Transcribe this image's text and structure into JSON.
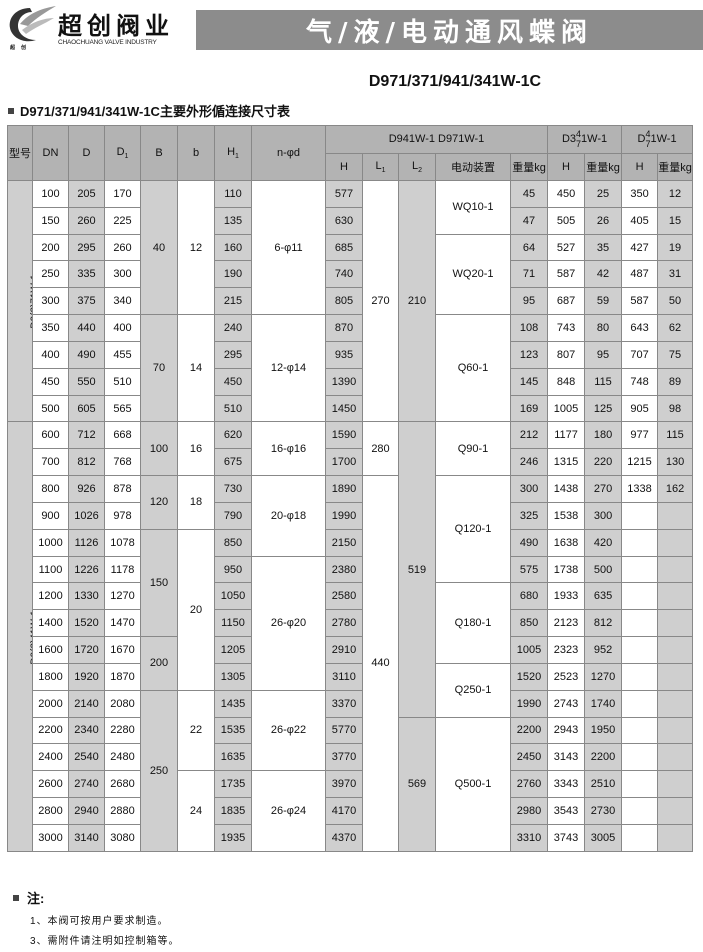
{
  "logo": {
    "name_cn": "超创阀业",
    "name_en": "CHAOCHUANG VALVE INDUSTRY",
    "mark_text": "超创"
  },
  "banner_title": "气/液/电动通风蝶阀",
  "subtitle": "D971/371/941/341W-1C",
  "section_title": "D971/371/941/341W-1C主要外形偱连接尺寸表",
  "colors": {
    "banner": "#8c8c8c",
    "header": "#b3b3b3",
    "shaded_cell": "#cfcfcf"
  },
  "table": {
    "headers": {
      "model": "型号",
      "dn": "DN",
      "d": "D",
      "d1": "D",
      "d1_sub": "1",
      "b_upper": "B",
      "b_lower": "b",
      "h1": "H",
      "h1_sub": "1",
      "n_phi_d": "n-φd",
      "group1": "D941W-1  D971W-1",
      "group2": {
        "pre": "D3",
        "sup": "4",
        "sub": "7",
        "post": "1W-1"
      },
      "group3": {
        "pre": "D",
        "sup": "4",
        "sub": "7",
        "post": "1W-1"
      },
      "h": "H",
      "l1": "L",
      "l1_sub": "1",
      "l2": "L",
      "l2_sub": "2",
      "actuator": "电动装置",
      "weight": "重量kg"
    },
    "dn": [
      "100",
      "150",
      "200",
      "250",
      "300",
      "350",
      "400",
      "450",
      "500",
      "600",
      "700",
      "800",
      "900",
      "1000",
      "1100",
      "1200",
      "1400",
      "1600",
      "1800",
      "2000",
      "2200",
      "2400",
      "2600",
      "2800",
      "3000"
    ],
    "D": [
      "205",
      "260",
      "295",
      "335",
      "375",
      "440",
      "490",
      "550",
      "605",
      "712",
      "812",
      "926",
      "1026",
      "1126",
      "1226",
      "1330",
      "1520",
      "1720",
      "1920",
      "2140",
      "2340",
      "2540",
      "2740",
      "2940",
      "3140"
    ],
    "D1": [
      "170",
      "225",
      "260",
      "300",
      "340",
      "400",
      "455",
      "510",
      "565",
      "668",
      "768",
      "878",
      "978",
      "1078",
      "1178",
      "1270",
      "1470",
      "1670",
      "1870",
      "2080",
      "2280",
      "2480",
      "2680",
      "2880",
      "3080"
    ],
    "H1": [
      "110",
      "135",
      "160",
      "190",
      "215",
      "240",
      "295",
      "450",
      "510",
      "620",
      "675",
      "730",
      "790",
      "850",
      "950",
      "1050",
      "1150",
      "1205",
      "1305",
      "1435",
      "1535",
      "1635",
      "1735",
      "1835",
      "1935"
    ],
    "H": [
      "577",
      "630",
      "685",
      "740",
      "805",
      "870",
      "935",
      "1390",
      "1450",
      "1590",
      "1700",
      "1890",
      "1990",
      "2150",
      "2380",
      "2580",
      "2780",
      "2910",
      "3110",
      "3370",
      "5770",
      "3770",
      "3970",
      "4170",
      "4370"
    ],
    "weight": [
      "45",
      "47",
      "64",
      "71",
      "95",
      "108",
      "123",
      "145",
      "169",
      "212",
      "246",
      "300",
      "325",
      "490",
      "575",
      "680",
      "850",
      "1005",
      "1520",
      "1990",
      "2200",
      "2450",
      "2760",
      "2980",
      "3310"
    ],
    "g2_H": [
      "450",
      "505",
      "527",
      "587",
      "687",
      "743",
      "807",
      "848",
      "1005",
      "1177",
      "1315",
      "1438",
      "1538",
      "1638",
      "1738",
      "1933",
      "2123",
      "2323",
      "2523",
      "2743",
      "2943",
      "3143",
      "3343",
      "3543",
      "3743"
    ],
    "g2_weight": [
      "25",
      "26",
      "35",
      "42",
      "59",
      "80",
      "95",
      "115",
      "125",
      "180",
      "220",
      "270",
      "300",
      "420",
      "500",
      "635",
      "812",
      "952",
      "1270",
      "1740",
      "1950",
      "2200",
      "2510",
      "2730",
      "3005"
    ],
    "g3_H": [
      "350",
      "405",
      "427",
      "487",
      "587",
      "643",
      "707",
      "748",
      "905",
      "977",
      "1215",
      "1338",
      "",
      "",
      "",
      "",
      "",
      "",
      "",
      "",
      "",
      "",
      "",
      "",
      ""
    ],
    "g3_weight": [
      "12",
      "15",
      "19",
      "31",
      "50",
      "62",
      "75",
      "89",
      "98",
      "115",
      "130",
      "162",
      "",
      "",
      "",
      "",
      "",
      "",
      "",
      "",
      "",
      "",
      "",
      "",
      ""
    ],
    "model": [
      {
        "label": "D9(3)71W-1",
        "start": 0,
        "span": 9
      },
      {
        "label": "D9(3)41W-1",
        "start": 9,
        "span": 16
      }
    ],
    "B": [
      {
        "label": "40",
        "start": 0,
        "span": 5
      },
      {
        "label": "70",
        "start": 5,
        "span": 4
      },
      {
        "label": "100",
        "start": 9,
        "span": 2
      },
      {
        "label": "120",
        "start": 11,
        "span": 2
      },
      {
        "label": "150",
        "start": 13,
        "span": 4
      },
      {
        "label": "200",
        "start": 17,
        "span": 2
      },
      {
        "label": "250",
        "start": 19,
        "span": 6
      }
    ],
    "b": [
      {
        "label": "12",
        "start": 0,
        "span": 5
      },
      {
        "label": "14",
        "start": 5,
        "span": 4
      },
      {
        "label": "16",
        "start": 9,
        "span": 2
      },
      {
        "label": "18",
        "start": 11,
        "span": 2
      },
      {
        "label": "20",
        "start": 13,
        "span": 6
      },
      {
        "label": "22",
        "start": 19,
        "span": 3
      },
      {
        "label": "24",
        "start": 22,
        "span": 3
      }
    ],
    "n_phi_d": [
      {
        "label": "6-φ11",
        "start": 0,
        "span": 5
      },
      {
        "label": "12-φ14",
        "start": 5,
        "span": 4
      },
      {
        "label": "16-φ16",
        "start": 9,
        "span": 2
      },
      {
        "label": "20-φ18",
        "start": 11,
        "span": 3
      },
      {
        "label": "26-φ20",
        "start": 14,
        "span": 5
      },
      {
        "label": "26-φ22",
        "start": 19,
        "span": 3
      },
      {
        "label": "26-φ24",
        "start": 22,
        "span": 3
      }
    ],
    "L1": [
      {
        "label": "270",
        "start": 0,
        "span": 9
      },
      {
        "label": "280",
        "start": 9,
        "span": 2
      },
      {
        "label": "440",
        "start": 11,
        "span": 14
      }
    ],
    "L2": [
      {
        "label": "210",
        "start": 0,
        "span": 9
      },
      {
        "label": "519",
        "start": 9,
        "span": 11
      },
      {
        "label": "569",
        "start": 20,
        "span": 5
      }
    ],
    "actuator": [
      {
        "label": "WQ10-1",
        "start": 0,
        "span": 2
      },
      {
        "label": "WQ20-1",
        "start": 2,
        "span": 3
      },
      {
        "label": "Q60-1",
        "start": 5,
        "span": 4
      },
      {
        "label": "Q90-1",
        "start": 9,
        "span": 2
      },
      {
        "label": "Q120-1",
        "start": 11,
        "span": 4
      },
      {
        "label": "Q180-1",
        "start": 15,
        "span": 3
      },
      {
        "label": "Q250-1",
        "start": 18,
        "span": 2
      },
      {
        "label": "Q500-1",
        "start": 20,
        "span": 5
      }
    ]
  },
  "notes": {
    "title": "注:",
    "items": [
      "1、本阀可按用户要求制造。",
      "3、需附件请注明如控制箱等。"
    ]
  }
}
